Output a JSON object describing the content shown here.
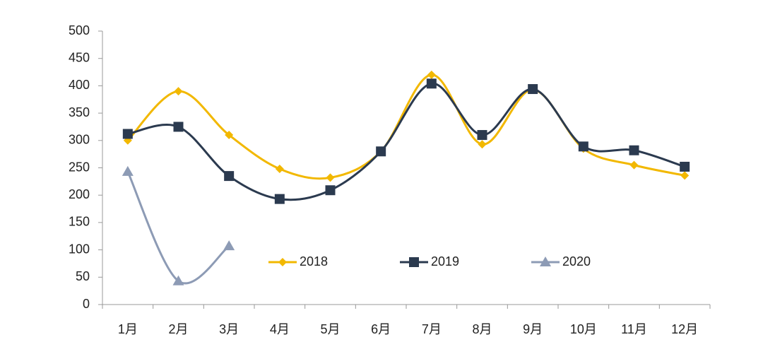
{
  "chart_data": {
    "type": "line",
    "categories": [
      "1月",
      "2月",
      "3月",
      "4月",
      "5月",
      "6月",
      "7月",
      "8月",
      "9月",
      "10月",
      "11月",
      "12月"
    ],
    "series": [
      {
        "name": "2018",
        "color": "#f2b800",
        "marker": "diamond",
        "values": [
          300,
          390,
          310,
          248,
          232,
          280,
          420,
          293,
          393,
          285,
          255,
          236
        ]
      },
      {
        "name": "2019",
        "color": "#2b3a4f",
        "marker": "square",
        "values": [
          312,
          325,
          235,
          193,
          209,
          280,
          404,
          310,
          394,
          289,
          282,
          252
        ]
      },
      {
        "name": "2020",
        "color": "#8d9bb5",
        "marker": "triangle",
        "values": [
          243,
          43,
          107,
          null,
          null,
          null,
          null,
          null,
          null,
          null,
          null,
          null
        ]
      }
    ],
    "ylim": [
      0,
      500
    ],
    "yticks": [
      0,
      50,
      100,
      150,
      200,
      250,
      300,
      350,
      400,
      450,
      500
    ],
    "smooth": true
  }
}
